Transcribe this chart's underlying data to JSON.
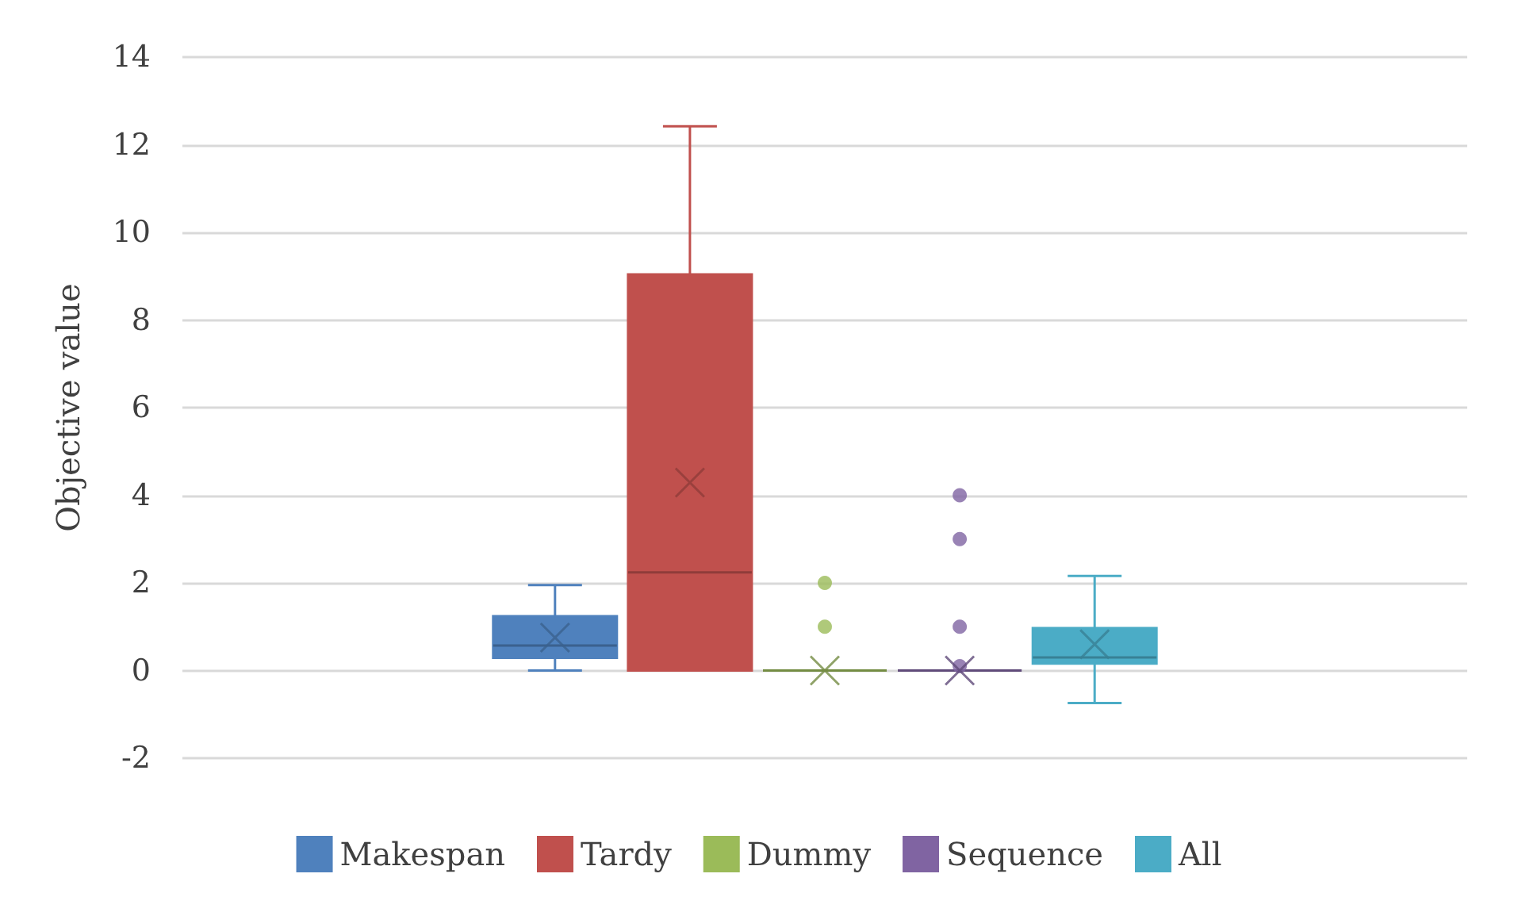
{
  "chart_data": {
    "type": "box",
    "ylabel": "Objective value",
    "categories": [
      null
    ],
    "series": [
      {
        "name": "Makespan",
        "color": "#4f81bd",
        "boxes": [
          {
            "low": 0,
            "q1": 0.29,
            "median": 0.57,
            "q3": 1.24,
            "high": 1.95,
            "mean": 0.75
          }
        ]
      },
      {
        "name": "Tardy",
        "color": "#c0504d",
        "boxes": [
          {
            "low": 0,
            "q1": 0,
            "median": 2.24,
            "q3": 9.04,
            "high": 12.42,
            "mean": 4.29
          }
        ]
      },
      {
        "name": "Dummy",
        "color": "#9bbb59",
        "boxes": [
          {
            "low": 0,
            "q1": 0,
            "median": 0,
            "q3": 0,
            "high": 0,
            "mean": 0,
            "outliers": [
              1,
              2
            ]
          }
        ]
      },
      {
        "name": "Sequence",
        "color": "#8064a2",
        "boxes": [
          {
            "low": 0,
            "q1": 0,
            "median": 0,
            "q3": 0,
            "high": 0,
            "mean": 0,
            "outliers": [
              0.1,
              1,
              3,
              4
            ]
          }
        ]
      },
      {
        "name": "All",
        "color": "#4bacc6",
        "boxes": [
          {
            "low": -0.74,
            "q1": 0.16,
            "median": 0.3,
            "q3": 0.97,
            "high": 2.16,
            "mean": 0.6
          }
        ]
      }
    ],
    "ylim": [
      -2,
      14
    ],
    "yticks": [
      -2,
      0,
      2,
      4,
      6,
      8,
      10,
      12,
      14
    ],
    "grid": "y",
    "legend": "bottom"
  }
}
